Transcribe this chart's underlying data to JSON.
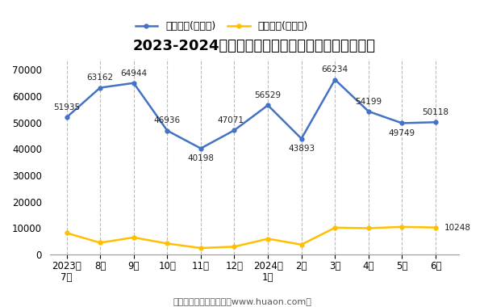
{
  "title": "2023-2024年上饶市商品收发货人所在地进、出口额",
  "x_labels": [
    "2023年\n7月",
    "8月",
    "9月",
    "10月",
    "11月",
    "12月",
    "2024年\n1月",
    "2月",
    "3月",
    "4月",
    "5月",
    "6月"
  ],
  "export_values": [
    51935,
    63162,
    64944,
    46936,
    40198,
    47071,
    56529,
    43893,
    66234,
    54199,
    49749,
    50118
  ],
  "import_values": [
    8200,
    4500,
    6500,
    4200,
    2500,
    3000,
    6000,
    3800,
    10200,
    10000,
    10500,
    10248
  ],
  "export_label": "出口总额(万美元)",
  "import_label": "进口总额(万美元)",
  "export_color": "#4472C4",
  "import_color": "#FFC000",
  "ylabel_values": [
    0,
    10000,
    20000,
    30000,
    40000,
    50000,
    60000,
    70000
  ],
  "ylim": [
    0,
    74000
  ],
  "footer": "制图：华经产业研究院（www.huaon.com）",
  "background_color": "#FFFFFF",
  "grid_color": "#BBBBBB",
  "annotation_fontsize": 7.5,
  "title_fontsize": 13,
  "legend_fontsize": 9,
  "tick_fontsize": 8.5,
  "footer_fontsize": 8
}
